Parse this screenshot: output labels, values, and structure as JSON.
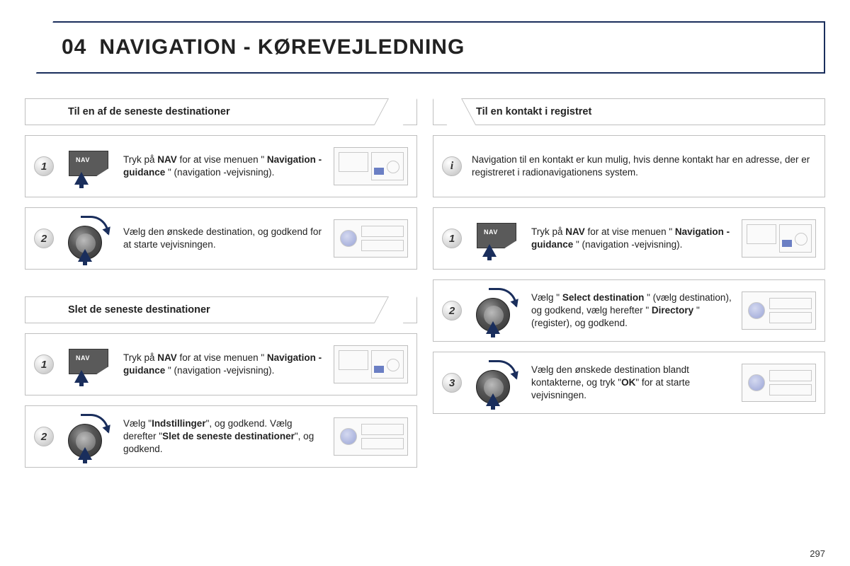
{
  "page": {
    "section_number": "04",
    "title": "NAVIGATION - KØREVEJLEDNING",
    "page_number": "297"
  },
  "colors": {
    "accent": "#1a2e5c",
    "border": "#bfbfbf",
    "icon_gray": "#5a5a5a",
    "highlight_blue": "#6b7fc4"
  },
  "left": {
    "section1": {
      "header": "Til en af de seneste destinationer",
      "steps": [
        {
          "badge": "1",
          "icon": "nav",
          "html": "Tryk på <b>NAV</b> for at vise menuen \" <b>Navigation - guidance</b> \" (navigation -vejvisning).",
          "thumb": "nav"
        },
        {
          "badge": "2",
          "icon": "dial",
          "html": "Vælg den ønskede destination, og godkend for at starte vejvisningen.",
          "thumb": "dial"
        }
      ]
    },
    "section2": {
      "header": "Slet de seneste destinationer",
      "steps": [
        {
          "badge": "1",
          "icon": "nav",
          "html": "Tryk på <b>NAV</b> for at vise menuen \" <b>Navigation - guidance</b> \" (navigation -vejvisning).",
          "thumb": "nav"
        },
        {
          "badge": "2",
          "icon": "dial",
          "html": "Vælg \"<b>Indstillinger</b>\", og godkend. Vælg derefter \"<b>Slet de seneste destinationer</b>\", og godkend.",
          "thumb": "dial"
        }
      ]
    }
  },
  "right": {
    "section1": {
      "header": "Til en kontakt i registret",
      "info": {
        "badge": "i",
        "html": "Navigation til en kontakt er kun mulig, hvis denne kontakt har en adresse, der er registreret i radionavigationens system."
      },
      "steps": [
        {
          "badge": "1",
          "icon": "nav",
          "html": "Tryk på <b>NAV</b> for at vise menuen \" <b>Navigation - guidance</b> \" (navigation -vejvisning).",
          "thumb": "nav"
        },
        {
          "badge": "2",
          "icon": "dial",
          "html": "Vælg \" <b>Select destination</b> \" (vælg destination), og godkend, vælg herefter \" <b>Directory</b> \" (register), og godkend.",
          "thumb": "dial"
        },
        {
          "badge": "3",
          "icon": "dial",
          "html": "Vælg den ønskede destination blandt kontakterne, og tryk \"<b>OK</b>\" for at starte vejvisningen.",
          "thumb": "dial"
        }
      ]
    }
  }
}
